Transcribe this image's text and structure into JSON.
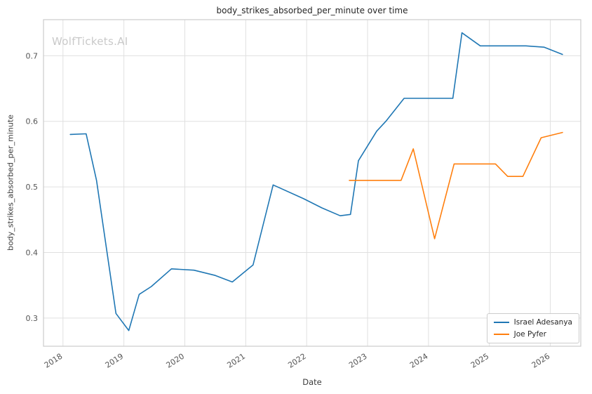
{
  "chart_data": {
    "type": "line",
    "title": "body_strikes_absorbed_per_minute over time",
    "xlabel": "Date",
    "ylabel": "body_strikes_absorbed_per_minute",
    "watermark": "WolfTickets.AI",
    "grid": true,
    "legend_position": "lower right",
    "xlim": [
      2017.68,
      2026.5
    ],
    "ylim": [
      0.257,
      0.755
    ],
    "xticks": [
      2018,
      2019,
      2020,
      2021,
      2022,
      2023,
      2024,
      2025,
      2026
    ],
    "yticks": [
      0.3,
      0.4,
      0.5,
      0.6,
      0.7
    ],
    "colors": {
      "grid": "#e0e0e0",
      "spine": "#cccccc",
      "tick_text": "#555555"
    },
    "series": [
      {
        "name": "Israel Adesanya",
        "color": "#1f77b4",
        "x": [
          2018.12,
          2018.38,
          2018.55,
          2018.87,
          2019.08,
          2019.25,
          2019.45,
          2019.78,
          2020.15,
          2020.5,
          2020.78,
          2021.12,
          2021.45,
          2021.95,
          2022.25,
          2022.55,
          2022.72,
          2022.85,
          2023.15,
          2023.3,
          2023.6,
          2024.4,
          2024.55,
          2024.85,
          2025.6,
          2025.9,
          2026.2
        ],
        "y": [
          0.58,
          0.581,
          0.51,
          0.307,
          0.281,
          0.336,
          0.348,
          0.375,
          0.373,
          0.365,
          0.355,
          0.381,
          0.503,
          0.482,
          0.468,
          0.456,
          0.458,
          0.54,
          0.585,
          0.6,
          0.635,
          0.635,
          0.735,
          0.715,
          0.715,
          0.713,
          0.702
        ]
      },
      {
        "name": "Joe Pyfer",
        "color": "#ff7f0e",
        "x": [
          2022.7,
          2023.55,
          2023.75,
          2024.1,
          2024.42,
          2025.1,
          2025.3,
          2025.55,
          2025.85,
          2026.2
        ],
        "y": [
          0.51,
          0.51,
          0.558,
          0.421,
          0.535,
          0.535,
          0.516,
          0.516,
          0.575,
          0.583
        ]
      }
    ]
  }
}
